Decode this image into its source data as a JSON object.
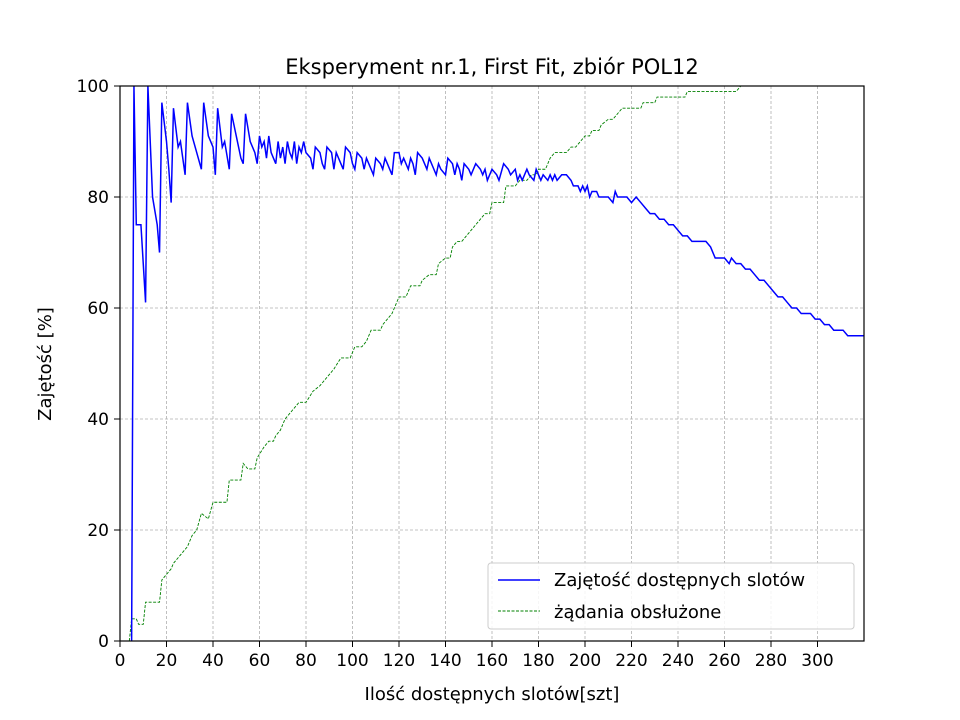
{
  "chart_data": {
    "type": "line",
    "title": "Eksperyment nr.1, First Fit, zbiór POL12",
    "xlabel": "Ilość dostępnych slotów[szt]",
    "ylabel": "Zajętość [%]",
    "xlim": [
      0,
      320
    ],
    "ylim": [
      0,
      100
    ],
    "xticks": [
      0,
      20,
      40,
      60,
      80,
      100,
      120,
      140,
      160,
      180,
      200,
      220,
      240,
      260,
      280,
      300
    ],
    "yticks": [
      0,
      20,
      40,
      60,
      80,
      100
    ],
    "grid": true,
    "legend_position": "lower-right",
    "series": [
      {
        "name": "Zajętość dostępnych slotów",
        "color": "#0000ff",
        "style": "solid",
        "points": [
          [
            5,
            0
          ],
          [
            6,
            100
          ],
          [
            7,
            75
          ],
          [
            8,
            75
          ],
          [
            9,
            75
          ],
          [
            11,
            61
          ],
          [
            12,
            100
          ],
          [
            14,
            80
          ],
          [
            16,
            75
          ],
          [
            17,
            70
          ],
          [
            18,
            97
          ],
          [
            20,
            90
          ],
          [
            21,
            85
          ],
          [
            22,
            79
          ],
          [
            23,
            96
          ],
          [
            25,
            89
          ],
          [
            26,
            90
          ],
          [
            28,
            84
          ],
          [
            29,
            97
          ],
          [
            31,
            91
          ],
          [
            33,
            88
          ],
          [
            35,
            85
          ],
          [
            36,
            97
          ],
          [
            38,
            91
          ],
          [
            40,
            89
          ],
          [
            41,
            84
          ],
          [
            42,
            96
          ],
          [
            44,
            89
          ],
          [
            45,
            90
          ],
          [
            47,
            85
          ],
          [
            48,
            95
          ],
          [
            50,
            91
          ],
          [
            52,
            87
          ],
          [
            53,
            86
          ],
          [
            54,
            95
          ],
          [
            56,
            90
          ],
          [
            58,
            88
          ],
          [
            59,
            86
          ],
          [
            60,
            91
          ],
          [
            61,
            89
          ],
          [
            62,
            90
          ],
          [
            63,
            87
          ],
          [
            64,
            91
          ],
          [
            65,
            88
          ],
          [
            67,
            86
          ],
          [
            68,
            90
          ],
          [
            69,
            87
          ],
          [
            70,
            89
          ],
          [
            71,
            86
          ],
          [
            72,
            90
          ],
          [
            73,
            88
          ],
          [
            74,
            87
          ],
          [
            75,
            90
          ],
          [
            76,
            86
          ],
          [
            77,
            89
          ],
          [
            78,
            88
          ],
          [
            79,
            90
          ],
          [
            80,
            88
          ],
          [
            82,
            87
          ],
          [
            83,
            85
          ],
          [
            84,
            89
          ],
          [
            86,
            88
          ],
          [
            87,
            86
          ],
          [
            88,
            85
          ],
          [
            89,
            89
          ],
          [
            91,
            88
          ],
          [
            92,
            85
          ],
          [
            93,
            88
          ],
          [
            95,
            86
          ],
          [
            96,
            85
          ],
          [
            97,
            89
          ],
          [
            99,
            88
          ],
          [
            100,
            86
          ],
          [
            101,
            85
          ],
          [
            102,
            88
          ],
          [
            104,
            87
          ],
          [
            105,
            85
          ],
          [
            106,
            87
          ],
          [
            107,
            86
          ],
          [
            109,
            84
          ],
          [
            110,
            87
          ],
          [
            112,
            86
          ],
          [
            113,
            85
          ],
          [
            114,
            87
          ],
          [
            115,
            86
          ],
          [
            117,
            84
          ],
          [
            118,
            88
          ],
          [
            120,
            88
          ],
          [
            121,
            86
          ],
          [
            122,
            87
          ],
          [
            124,
            85
          ],
          [
            125,
            87
          ],
          [
            126,
            86
          ],
          [
            127,
            84
          ],
          [
            128,
            88
          ],
          [
            130,
            87
          ],
          [
            131,
            86
          ],
          [
            132,
            85
          ],
          [
            133,
            87
          ],
          [
            135,
            85
          ],
          [
            136,
            84
          ],
          [
            137,
            86
          ],
          [
            138,
            85
          ],
          [
            140,
            84
          ],
          [
            141,
            87
          ],
          [
            143,
            86
          ],
          [
            144,
            84
          ],
          [
            145,
            86
          ],
          [
            146,
            85
          ],
          [
            147,
            83
          ],
          [
            148,
            86
          ],
          [
            150,
            85
          ],
          [
            151,
            84
          ],
          [
            153,
            86
          ],
          [
            155,
            85
          ],
          [
            156,
            84
          ],
          [
            157,
            85
          ],
          [
            158,
            83
          ],
          [
            160,
            85
          ],
          [
            162,
            84
          ],
          [
            163,
            83
          ],
          [
            165,
            86
          ],
          [
            167,
            85
          ],
          [
            168,
            84
          ],
          [
            170,
            85
          ],
          [
            171,
            83
          ],
          [
            172,
            84
          ],
          [
            173,
            83
          ],
          [
            175,
            85
          ],
          [
            176,
            84
          ],
          [
            178,
            83
          ],
          [
            179,
            85
          ],
          [
            180,
            84
          ],
          [
            181,
            83
          ],
          [
            182,
            84
          ],
          [
            184,
            83
          ],
          [
            185,
            84
          ],
          [
            186,
            83
          ],
          [
            187,
            84
          ],
          [
            188,
            83
          ],
          [
            190,
            84
          ],
          [
            192,
            84
          ],
          [
            194,
            83
          ],
          [
            195,
            82
          ],
          [
            197,
            82
          ],
          [
            198,
            81
          ],
          [
            199,
            82
          ],
          [
            200,
            81
          ],
          [
            201,
            82
          ],
          [
            202,
            80
          ],
          [
            203,
            81
          ],
          [
            205,
            81
          ],
          [
            206,
            80
          ],
          [
            208,
            80
          ],
          [
            210,
            80
          ],
          [
            212,
            79
          ],
          [
            213,
            81
          ],
          [
            214,
            80
          ],
          [
            216,
            80
          ],
          [
            218,
            80
          ],
          [
            220,
            79
          ],
          [
            222,
            80
          ],
          [
            224,
            79
          ],
          [
            226,
            78
          ],
          [
            228,
            77
          ],
          [
            230,
            77
          ],
          [
            232,
            76
          ],
          [
            234,
            76
          ],
          [
            236,
            75
          ],
          [
            238,
            75
          ],
          [
            240,
            74
          ],
          [
            242,
            73
          ],
          [
            244,
            73
          ],
          [
            246,
            72
          ],
          [
            248,
            72
          ],
          [
            250,
            72
          ],
          [
            252,
            72
          ],
          [
            254,
            71
          ],
          [
            256,
            69
          ],
          [
            258,
            69
          ],
          [
            260,
            69
          ],
          [
            262,
            68
          ],
          [
            263,
            69
          ],
          [
            265,
            68
          ],
          [
            267,
            68
          ],
          [
            269,
            67
          ],
          [
            271,
            67
          ],
          [
            273,
            66
          ],
          [
            275,
            65
          ],
          [
            277,
            65
          ],
          [
            279,
            64
          ],
          [
            281,
            63
          ],
          [
            283,
            62
          ],
          [
            285,
            62
          ],
          [
            287,
            61
          ],
          [
            289,
            60
          ],
          [
            291,
            60
          ],
          [
            293,
            59
          ],
          [
            295,
            59
          ],
          [
            297,
            59
          ],
          [
            299,
            58
          ],
          [
            301,
            58
          ],
          [
            303,
            57
          ],
          [
            305,
            57
          ],
          [
            307,
            56
          ],
          [
            309,
            56
          ],
          [
            311,
            56
          ],
          [
            313,
            55
          ],
          [
            315,
            55
          ],
          [
            317,
            55
          ],
          [
            320,
            55
          ]
        ]
      },
      {
        "name": "żądania obsłużone",
        "color": "#008000",
        "style": "dashed",
        "points": [
          [
            4,
            0
          ],
          [
            5,
            4
          ],
          [
            7,
            4
          ],
          [
            8,
            3
          ],
          [
            10,
            3
          ],
          [
            11,
            7
          ],
          [
            17,
            7
          ],
          [
            18,
            11
          ],
          [
            20,
            12
          ],
          [
            22,
            13
          ],
          [
            23,
            14
          ],
          [
            25,
            15
          ],
          [
            27,
            16
          ],
          [
            29,
            17
          ],
          [
            31,
            19
          ],
          [
            33,
            20
          ],
          [
            35,
            23
          ],
          [
            38,
            22
          ],
          [
            40,
            25
          ],
          [
            42,
            25
          ],
          [
            46,
            25
          ],
          [
            47,
            29
          ],
          [
            52,
            29
          ],
          [
            53,
            32
          ],
          [
            55,
            31
          ],
          [
            58,
            31
          ],
          [
            59,
            33
          ],
          [
            62,
            35
          ],
          [
            64,
            36
          ],
          [
            66,
            36
          ],
          [
            67,
            37
          ],
          [
            69,
            38
          ],
          [
            71,
            40
          ],
          [
            73,
            41
          ],
          [
            75,
            42
          ],
          [
            77,
            43
          ],
          [
            79,
            43
          ],
          [
            80,
            43
          ],
          [
            83,
            45
          ],
          [
            86,
            46
          ],
          [
            88,
            47
          ],
          [
            90,
            48
          ],
          [
            92,
            49
          ],
          [
            95,
            51
          ],
          [
            99,
            51
          ],
          [
            101,
            53
          ],
          [
            104,
            53
          ],
          [
            106,
            54
          ],
          [
            108,
            56
          ],
          [
            112,
            56
          ],
          [
            113,
            57
          ],
          [
            115,
            58
          ],
          [
            117,
            59
          ],
          [
            120,
            62
          ],
          [
            123,
            62
          ],
          [
            125,
            64
          ],
          [
            129,
            64
          ],
          [
            130,
            65
          ],
          [
            133,
            66
          ],
          [
            136,
            66
          ],
          [
            137,
            68
          ],
          [
            140,
            69
          ],
          [
            142,
            69
          ],
          [
            143,
            71
          ],
          [
            145,
            72
          ],
          [
            147,
            72
          ],
          [
            149,
            73
          ],
          [
            151,
            74
          ],
          [
            153,
            75
          ],
          [
            155,
            76
          ],
          [
            157,
            77
          ],
          [
            159,
            77
          ],
          [
            160,
            79
          ],
          [
            162,
            79
          ],
          [
            165,
            79
          ],
          [
            166,
            82
          ],
          [
            170,
            82
          ],
          [
            172,
            83
          ],
          [
            175,
            83
          ],
          [
            177,
            84
          ],
          [
            179,
            84
          ],
          [
            180,
            85
          ],
          [
            183,
            85
          ],
          [
            185,
            87
          ],
          [
            187,
            88
          ],
          [
            192,
            88
          ],
          [
            194,
            89
          ],
          [
            196,
            89
          ],
          [
            198,
            90
          ],
          [
            200,
            91
          ],
          [
            202,
            91
          ],
          [
            203,
            92
          ],
          [
            206,
            92
          ],
          [
            207,
            93
          ],
          [
            210,
            94
          ],
          [
            212,
            94
          ],
          [
            214,
            95
          ],
          [
            216,
            96
          ],
          [
            224,
            96
          ],
          [
            225,
            97
          ],
          [
            230,
            97
          ],
          [
            231,
            98
          ],
          [
            243,
            98
          ],
          [
            244,
            99
          ],
          [
            252,
            99
          ],
          [
            265,
            99
          ],
          [
            267,
            100
          ],
          [
            320,
            100
          ]
        ]
      }
    ]
  }
}
